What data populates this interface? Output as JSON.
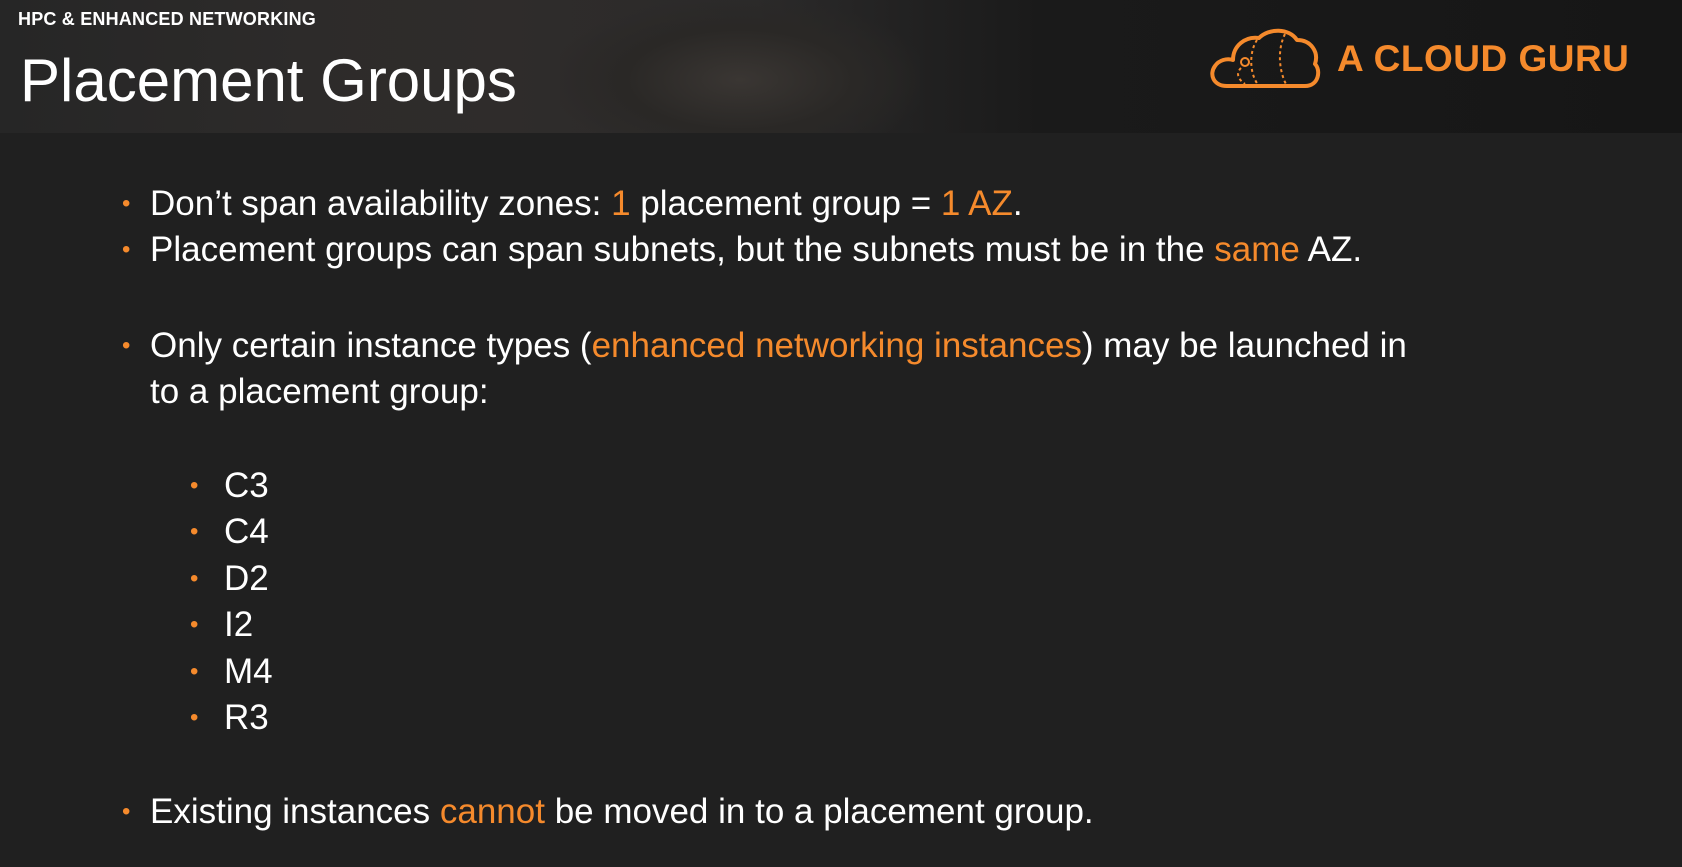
{
  "header": {
    "section_label": "HPC & ENHANCED NETWORKING",
    "title": "Placement Groups",
    "logo_text": "A CLOUD GURU",
    "logo_icon": "cloud-icon"
  },
  "colors": {
    "accent": "#f58a2c",
    "background": "#202020",
    "text": "#ffffff"
  },
  "bullets": {
    "b1": {
      "t1": "Don’t span availability zones: ",
      "h1": "1",
      "t2": " placement group = ",
      "h2": "1 AZ",
      "t3": "."
    },
    "b2": {
      "t1": "Placement groups can span subnets, but the subnets must be in the ",
      "h1": "same",
      "t2": " AZ."
    },
    "b3": {
      "t1": "Only certain instance types (",
      "h1": "enhanced networking instances",
      "t2": ") may be launched in",
      "line2": "to a placement group:"
    },
    "instance_types": [
      "C3",
      "C4",
      "D2",
      "I2",
      "M4",
      "R3"
    ],
    "b4": {
      "t1": "Existing instances ",
      "h1": "cannot",
      "t2": " be moved in to a placement group."
    }
  },
  "bullet_glyph": "•"
}
